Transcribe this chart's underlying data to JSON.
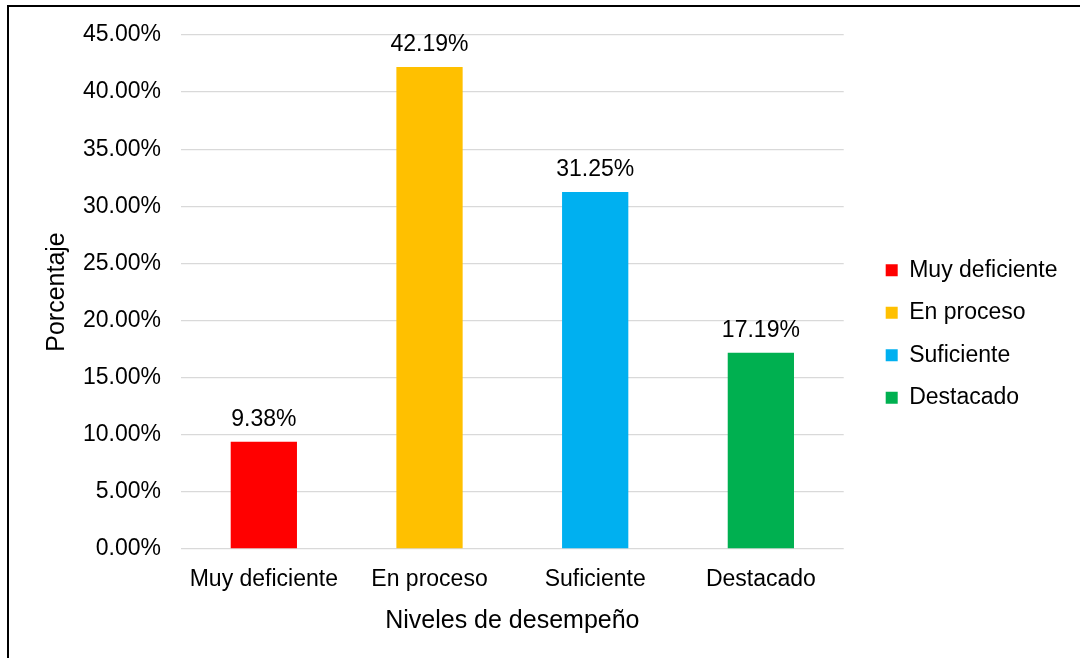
{
  "chart_data": {
    "type": "bar",
    "xlabel": "Niveles de desempeño",
    "ylabel": "Porcentaje",
    "categories": [
      "Muy deficiente",
      "En proceso",
      "Suficiente",
      "Destacado"
    ],
    "series": [
      {
        "name": "Muy deficiente",
        "color": "#ff0000",
        "values": [
          9.38,
          null,
          null,
          null
        ],
        "value_labels": [
          "9.38%",
          null,
          null,
          null
        ]
      },
      {
        "name": "En proceso",
        "color": "#ffc000",
        "values": [
          null,
          42.19,
          null,
          null
        ],
        "value_labels": [
          null,
          "42.19%",
          null,
          null
        ]
      },
      {
        "name": "Suficiente",
        "color": "#00b0f0",
        "values": [
          null,
          null,
          31.25,
          null
        ],
        "value_labels": [
          null,
          null,
          "31.25%",
          null
        ]
      },
      {
        "name": "Destacado",
        "color": "#00b050",
        "values": [
          null,
          null,
          null,
          17.19
        ],
        "value_labels": [
          null,
          null,
          null,
          "17.19%"
        ]
      }
    ],
    "ylim": [
      0,
      45
    ],
    "yticks": [
      {
        "value": 0,
        "label": "0.00%"
      },
      {
        "value": 5,
        "label": "5.00%"
      },
      {
        "value": 10,
        "label": "10.00%"
      },
      {
        "value": 15,
        "label": "15.00%"
      },
      {
        "value": 20,
        "label": "20.00%"
      },
      {
        "value": 25,
        "label": "25.00%"
      },
      {
        "value": 30,
        "label": "30.00%"
      },
      {
        "value": 35,
        "label": "35.00%"
      },
      {
        "value": 40,
        "label": "40.00%"
      },
      {
        "value": 45,
        "label": "45.00%"
      }
    ],
    "grid": "y",
    "legend": "right"
  }
}
